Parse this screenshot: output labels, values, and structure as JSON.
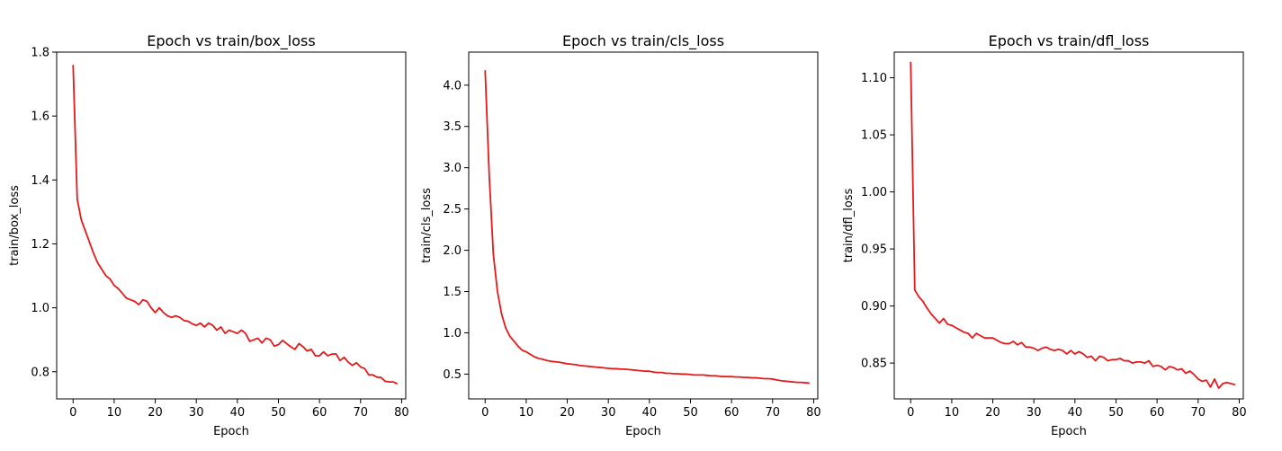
{
  "chart_data": [
    {
      "type": "line",
      "title": "Epoch vs          train/box_loss",
      "xlabel": "Epoch",
      "ylabel": "train/box_loss",
      "xlim": [
        -4,
        81
      ],
      "ylim": [
        0.715,
        1.8
      ],
      "xticks": [
        0,
        10,
        20,
        30,
        40,
        50,
        60,
        70,
        80
      ],
      "yticks": [
        0.8,
        1.0,
        1.2,
        1.4,
        1.6,
        1.8
      ],
      "ytick_labels": [
        "0.8",
        "1.0",
        "1.2",
        "1.4",
        "1.6",
        "1.8"
      ],
      "color": "#e31a1c",
      "grid": false,
      "series": [
        {
          "x": [
            0,
            1,
            2,
            3,
            4,
            5,
            6,
            7,
            8,
            9,
            10,
            11,
            12,
            13,
            14,
            15,
            16,
            17,
            18,
            19,
            20,
            21,
            22,
            23,
            24,
            25,
            26,
            27,
            28,
            29,
            30,
            31,
            32,
            33,
            34,
            35,
            36,
            37,
            38,
            39,
            40,
            41,
            42,
            43,
            44,
            45,
            46,
            47,
            48,
            49,
            50,
            51,
            52,
            53,
            54,
            55,
            56,
            57,
            58,
            59,
            60,
            61,
            62,
            63,
            64,
            65,
            66,
            67,
            68,
            69,
            70,
            71,
            72,
            73,
            74,
            75,
            76,
            77,
            78,
            79
          ],
          "values": [
            1.76,
            1.34,
            1.275,
            1.24,
            1.205,
            1.17,
            1.14,
            1.12,
            1.1,
            1.09,
            1.07,
            1.06,
            1.045,
            1.03,
            1.025,
            1.02,
            1.01,
            1.025,
            1.02,
            1.0,
            0.985,
            1.0,
            0.985,
            0.975,
            0.97,
            0.975,
            0.97,
            0.96,
            0.958,
            0.95,
            0.945,
            0.952,
            0.94,
            0.952,
            0.945,
            0.93,
            0.94,
            0.92,
            0.93,
            0.925,
            0.92,
            0.93,
            0.92,
            0.895,
            0.9,
            0.905,
            0.89,
            0.905,
            0.9,
            0.88,
            0.885,
            0.898,
            0.888,
            0.878,
            0.87,
            0.888,
            0.878,
            0.865,
            0.87,
            0.85,
            0.85,
            0.862,
            0.85,
            0.855,
            0.856,
            0.835,
            0.845,
            0.83,
            0.82,
            0.828,
            0.815,
            0.81,
            0.79,
            0.79,
            0.783,
            0.782,
            0.77,
            0.768,
            0.768,
            0.762
          ]
        }
      ]
    },
    {
      "type": "line",
      "title": "Epoch vs          train/cls_loss",
      "xlabel": "Epoch",
      "ylabel": "train/cls_loss",
      "xlim": [
        -4,
        81
      ],
      "ylim": [
        0.2,
        4.4
      ],
      "xticks": [
        0,
        10,
        20,
        30,
        40,
        50,
        60,
        70,
        80
      ],
      "yticks": [
        0.5,
        1.0,
        1.5,
        2.0,
        2.5,
        3.0,
        3.5,
        4.0
      ],
      "ytick_labels": [
        "0.5",
        "1.0",
        "1.5",
        "2.0",
        "2.5",
        "3.0",
        "3.5",
        "4.0"
      ],
      "color": "#e31a1c",
      "grid": false,
      "series": [
        {
          "x": [
            0,
            1,
            2,
            3,
            4,
            5,
            6,
            7,
            8,
            9,
            10,
            11,
            12,
            13,
            14,
            15,
            16,
            17,
            18,
            19,
            20,
            21,
            22,
            23,
            24,
            25,
            26,
            27,
            28,
            29,
            30,
            31,
            32,
            33,
            34,
            35,
            36,
            37,
            38,
            39,
            40,
            41,
            42,
            43,
            44,
            45,
            46,
            47,
            48,
            49,
            50,
            51,
            52,
            53,
            54,
            55,
            56,
            57,
            58,
            59,
            60,
            61,
            62,
            63,
            64,
            65,
            66,
            67,
            68,
            69,
            70,
            71,
            72,
            73,
            74,
            75,
            76,
            77,
            78,
            79
          ],
          "values": [
            4.18,
            2.9,
            1.95,
            1.5,
            1.23,
            1.06,
            0.96,
            0.9,
            0.84,
            0.79,
            0.77,
            0.74,
            0.71,
            0.69,
            0.68,
            0.665,
            0.655,
            0.65,
            0.645,
            0.635,
            0.625,
            0.62,
            0.615,
            0.605,
            0.6,
            0.595,
            0.59,
            0.585,
            0.58,
            0.575,
            0.57,
            0.565,
            0.565,
            0.56,
            0.56,
            0.555,
            0.55,
            0.545,
            0.54,
            0.535,
            0.535,
            0.525,
            0.52,
            0.52,
            0.51,
            0.51,
            0.505,
            0.505,
            0.5,
            0.5,
            0.495,
            0.49,
            0.49,
            0.49,
            0.485,
            0.48,
            0.48,
            0.475,
            0.47,
            0.47,
            0.47,
            0.465,
            0.465,
            0.46,
            0.46,
            0.455,
            0.455,
            0.45,
            0.445,
            0.445,
            0.44,
            0.43,
            0.42,
            0.415,
            0.41,
            0.405,
            0.4,
            0.4,
            0.395,
            0.39
          ]
        }
      ]
    },
    {
      "type": "line",
      "title": "Epoch vs          train/dfl_loss",
      "xlabel": "Epoch",
      "ylabel": "train/dfl_loss",
      "xlim": [
        -4,
        81
      ],
      "ylim": [
        0.8186,
        1.1225
      ],
      "xticks": [
        0,
        10,
        20,
        30,
        40,
        50,
        60,
        70,
        80
      ],
      "yticks": [
        0.85,
        0.9,
        0.95,
        1.0,
        1.05,
        1.1
      ],
      "ytick_labels": [
        "0.85",
        "0.90",
        "0.95",
        "1.00",
        "1.05",
        "1.10"
      ],
      "color": "#e31a1c",
      "grid": false,
      "series": [
        {
          "x": [
            0,
            1,
            2,
            3,
            4,
            5,
            6,
            7,
            8,
            9,
            10,
            11,
            12,
            13,
            14,
            15,
            16,
            17,
            18,
            19,
            20,
            21,
            22,
            23,
            24,
            25,
            26,
            27,
            28,
            29,
            30,
            31,
            32,
            33,
            34,
            35,
            36,
            37,
            38,
            39,
            40,
            41,
            42,
            43,
            44,
            45,
            46,
            47,
            48,
            49,
            50,
            51,
            52,
            53,
            54,
            55,
            56,
            57,
            58,
            59,
            60,
            61,
            62,
            63,
            64,
            65,
            66,
            67,
            68,
            69,
            70,
            71,
            72,
            73,
            74,
            75,
            76,
            77,
            78,
            79
          ],
          "values": [
            1.114,
            0.914,
            0.908,
            0.904,
            0.898,
            0.893,
            0.889,
            0.885,
            0.889,
            0.884,
            0.883,
            0.881,
            0.879,
            0.877,
            0.876,
            0.872,
            0.876,
            0.874,
            0.872,
            0.872,
            0.872,
            0.87,
            0.868,
            0.867,
            0.867,
            0.869,
            0.866,
            0.868,
            0.864,
            0.864,
            0.863,
            0.861,
            0.863,
            0.864,
            0.862,
            0.861,
            0.862,
            0.861,
            0.858,
            0.861,
            0.858,
            0.86,
            0.858,
            0.855,
            0.856,
            0.852,
            0.856,
            0.855,
            0.852,
            0.853,
            0.853,
            0.854,
            0.852,
            0.852,
            0.85,
            0.851,
            0.851,
            0.85,
            0.852,
            0.847,
            0.848,
            0.847,
            0.844,
            0.847,
            0.846,
            0.844,
            0.845,
            0.841,
            0.843,
            0.84,
            0.836,
            0.834,
            0.835,
            0.829,
            0.836,
            0.828,
            0.832,
            0.833,
            0.832,
            0.831
          ]
        }
      ]
    }
  ]
}
